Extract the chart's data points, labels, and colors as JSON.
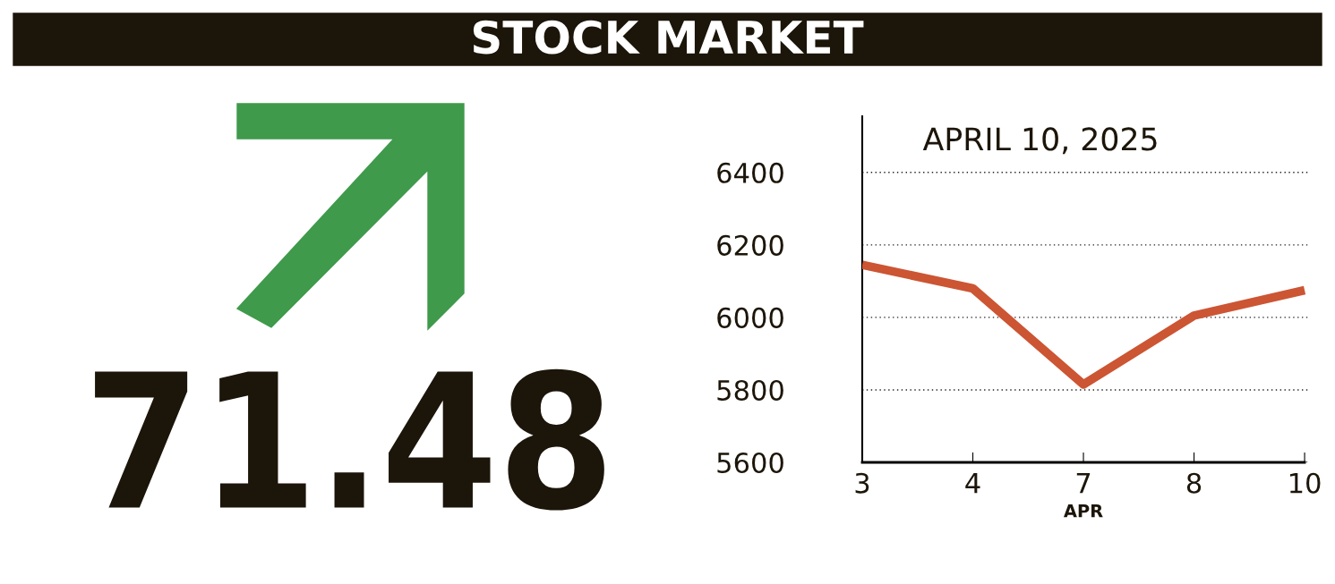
{
  "chart_data": [
    {
      "type": "other",
      "title": "STOCK MARKET",
      "annotations": [
        "71.48"
      ]
    },
    {
      "type": "line",
      "title": "APRIL 10, 2025",
      "xlabel": "APR",
      "categories": [
        "3",
        "4",
        "7",
        "8",
        "10"
      ],
      "series": [
        {
          "color": "#cc5533",
          "values": [
            6145,
            6080,
            5815,
            6005,
            6075
          ]
        }
      ],
      "ylim": [
        5600,
        6555
      ],
      "yticks": [
        5600,
        5800,
        6000,
        6200,
        6400
      ],
      "grid": "y",
      "marker": "none",
      "line_style": "solid"
    }
  ]
}
